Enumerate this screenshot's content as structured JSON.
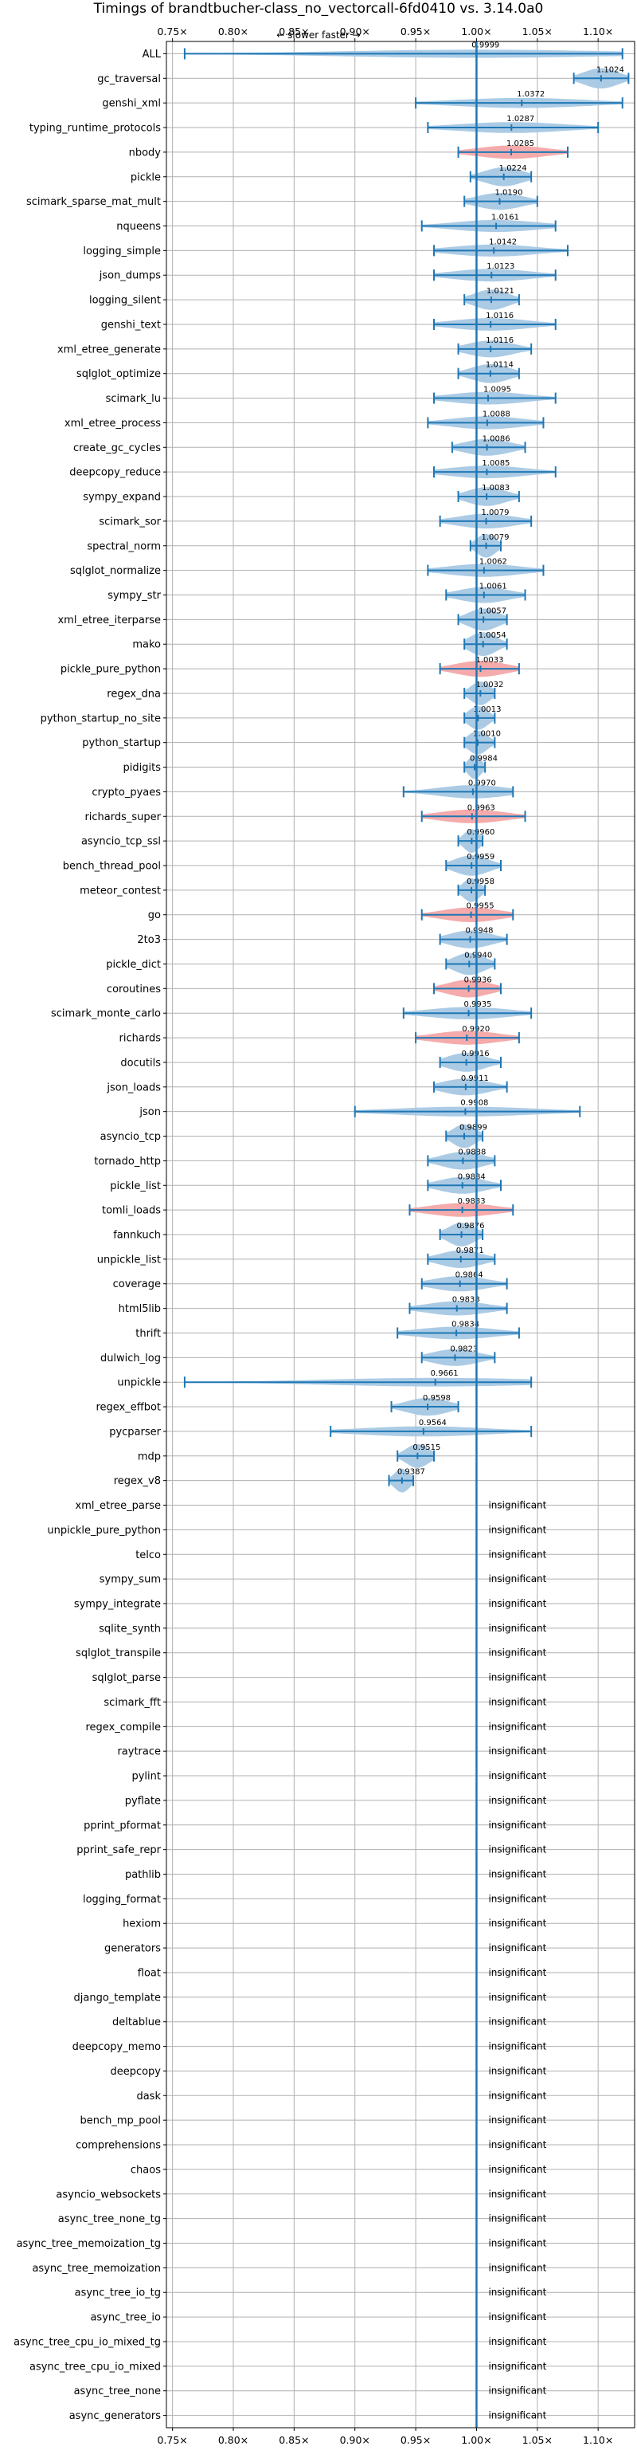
{
  "title": "Timings of brandtbucher-class_no_vectorcall-6fd0410 vs. 3.14.0a0",
  "subtitle": "← slower     faster →",
  "chart_data": {
    "type": "violin",
    "xlim": [
      0.745,
      1.13
    ],
    "xticks": [
      0.75,
      0.8,
      0.85,
      0.9,
      0.95,
      1.0,
      1.05,
      1.1
    ],
    "xtick_labels": [
      "0.75×",
      "0.80×",
      "0.85×",
      "0.90×",
      "0.95×",
      "1.00×",
      "1.05×",
      "1.10×"
    ],
    "grid": true,
    "colors": {
      "faster": "#a6c8e4",
      "slower": "#f4a6a6",
      "line": "#1f77b4",
      "grid": "#b0b0b0"
    },
    "insignificant_label": "insignificant",
    "benchmarks": [
      {
        "name": "ALL",
        "value": 0.9999,
        "min": 0.76,
        "max": 1.12,
        "slower": false
      },
      {
        "name": "gc_traversal",
        "value": 1.1024,
        "min": 1.08,
        "max": 1.125,
        "slower": false
      },
      {
        "name": "genshi_xml",
        "value": 1.0372,
        "min": 0.95,
        "max": 1.12,
        "slower": false
      },
      {
        "name": "typing_runtime_protocols",
        "value": 1.0287,
        "min": 0.96,
        "max": 1.1,
        "slower": false
      },
      {
        "name": "nbody",
        "value": 1.0285,
        "min": 0.985,
        "max": 1.075,
        "slower": true
      },
      {
        "name": "pickle",
        "value": 1.0224,
        "min": 0.995,
        "max": 1.045,
        "slower": false
      },
      {
        "name": "scimark_sparse_mat_mult",
        "value": 1.019,
        "min": 0.99,
        "max": 1.05,
        "slower": false
      },
      {
        "name": "nqueens",
        "value": 1.0161,
        "min": 0.955,
        "max": 1.065,
        "slower": false
      },
      {
        "name": "logging_simple",
        "value": 1.0142,
        "min": 0.965,
        "max": 1.075,
        "slower": false
      },
      {
        "name": "json_dumps",
        "value": 1.0123,
        "min": 0.965,
        "max": 1.065,
        "slower": false
      },
      {
        "name": "logging_silent",
        "value": 1.0121,
        "min": 0.99,
        "max": 1.035,
        "slower": false
      },
      {
        "name": "genshi_text",
        "value": 1.0116,
        "min": 0.965,
        "max": 1.065,
        "slower": false
      },
      {
        "name": "xml_etree_generate",
        "value": 1.0116,
        "min": 0.985,
        "max": 1.045,
        "slower": false
      },
      {
        "name": "sqlglot_optimize",
        "value": 1.0114,
        "min": 0.985,
        "max": 1.035,
        "slower": false
      },
      {
        "name": "scimark_lu",
        "value": 1.0095,
        "min": 0.965,
        "max": 1.065,
        "slower": false
      },
      {
        "name": "xml_etree_process",
        "value": 1.0088,
        "min": 0.96,
        "max": 1.055,
        "slower": false
      },
      {
        "name": "create_gc_cycles",
        "value": 1.0086,
        "min": 0.98,
        "max": 1.04,
        "slower": false
      },
      {
        "name": "deepcopy_reduce",
        "value": 1.0085,
        "min": 0.965,
        "max": 1.065,
        "slower": false
      },
      {
        "name": "sympy_expand",
        "value": 1.0083,
        "min": 0.985,
        "max": 1.035,
        "slower": false
      },
      {
        "name": "scimark_sor",
        "value": 1.0079,
        "min": 0.97,
        "max": 1.045,
        "slower": false
      },
      {
        "name": "spectral_norm",
        "value": 1.0079,
        "min": 0.995,
        "max": 1.02,
        "slower": false
      },
      {
        "name": "sqlglot_normalize",
        "value": 1.0062,
        "min": 0.96,
        "max": 1.055,
        "slower": false
      },
      {
        "name": "sympy_str",
        "value": 1.0061,
        "min": 0.975,
        "max": 1.04,
        "slower": false
      },
      {
        "name": "xml_etree_iterparse",
        "value": 1.0057,
        "min": 0.985,
        "max": 1.025,
        "slower": false
      },
      {
        "name": "mako",
        "value": 1.0054,
        "min": 0.99,
        "max": 1.025,
        "slower": false
      },
      {
        "name": "pickle_pure_python",
        "value": 1.0033,
        "min": 0.97,
        "max": 1.035,
        "slower": true
      },
      {
        "name": "regex_dna",
        "value": 1.0032,
        "min": 0.99,
        "max": 1.015,
        "slower": false
      },
      {
        "name": "python_startup_no_site",
        "value": 1.0013,
        "min": 0.99,
        "max": 1.015,
        "slower": false
      },
      {
        "name": "python_startup",
        "value": 1.001,
        "min": 0.99,
        "max": 1.015,
        "slower": false
      },
      {
        "name": "pidigits",
        "value": 0.9984,
        "min": 0.99,
        "max": 1.007,
        "slower": false
      },
      {
        "name": "crypto_pyaes",
        "value": 0.997,
        "min": 0.94,
        "max": 1.03,
        "slower": false
      },
      {
        "name": "richards_super",
        "value": 0.9963,
        "min": 0.955,
        "max": 1.04,
        "slower": true
      },
      {
        "name": "asyncio_tcp_ssl",
        "value": 0.996,
        "min": 0.985,
        "max": 1.005,
        "slower": false
      },
      {
        "name": "bench_thread_pool",
        "value": 0.9959,
        "min": 0.975,
        "max": 1.02,
        "slower": false
      },
      {
        "name": "meteor_contest",
        "value": 0.9958,
        "min": 0.985,
        "max": 1.007,
        "slower": false
      },
      {
        "name": "go",
        "value": 0.9955,
        "min": 0.955,
        "max": 1.03,
        "slower": true
      },
      {
        "name": "2to3",
        "value": 0.9948,
        "min": 0.97,
        "max": 1.025,
        "slower": false
      },
      {
        "name": "pickle_dict",
        "value": 0.994,
        "min": 0.975,
        "max": 1.015,
        "slower": false
      },
      {
        "name": "coroutines",
        "value": 0.9936,
        "min": 0.965,
        "max": 1.02,
        "slower": true
      },
      {
        "name": "scimark_monte_carlo",
        "value": 0.9935,
        "min": 0.94,
        "max": 1.045,
        "slower": false
      },
      {
        "name": "richards",
        "value": 0.992,
        "min": 0.95,
        "max": 1.035,
        "slower": true
      },
      {
        "name": "docutils",
        "value": 0.9916,
        "min": 0.97,
        "max": 1.02,
        "slower": false
      },
      {
        "name": "json_loads",
        "value": 0.9911,
        "min": 0.965,
        "max": 1.025,
        "slower": false
      },
      {
        "name": "json",
        "value": 0.9908,
        "min": 0.9,
        "max": 1.085,
        "slower": false
      },
      {
        "name": "asyncio_tcp",
        "value": 0.9899,
        "min": 0.975,
        "max": 1.005,
        "slower": false
      },
      {
        "name": "tornado_http",
        "value": 0.9888,
        "min": 0.96,
        "max": 1.015,
        "slower": false
      },
      {
        "name": "pickle_list",
        "value": 0.9884,
        "min": 0.96,
        "max": 1.02,
        "slower": false
      },
      {
        "name": "tomli_loads",
        "value": 0.9883,
        "min": 0.945,
        "max": 1.03,
        "slower": true
      },
      {
        "name": "fannkuch",
        "value": 0.9876,
        "min": 0.97,
        "max": 1.005,
        "slower": false
      },
      {
        "name": "unpickle_list",
        "value": 0.9871,
        "min": 0.96,
        "max": 1.015,
        "slower": false
      },
      {
        "name": "coverage",
        "value": 0.9864,
        "min": 0.955,
        "max": 1.025,
        "slower": false
      },
      {
        "name": "html5lib",
        "value": 0.9838,
        "min": 0.945,
        "max": 1.025,
        "slower": false
      },
      {
        "name": "thrift",
        "value": 0.9834,
        "min": 0.935,
        "max": 1.035,
        "slower": false
      },
      {
        "name": "dulwich_log",
        "value": 0.9823,
        "min": 0.955,
        "max": 1.015,
        "slower": false
      },
      {
        "name": "unpickle",
        "value": 0.9661,
        "min": 0.76,
        "max": 1.045,
        "slower": false
      },
      {
        "name": "regex_effbot",
        "value": 0.9598,
        "min": 0.93,
        "max": 0.985,
        "slower": false
      },
      {
        "name": "pycparser",
        "value": 0.9564,
        "min": 0.88,
        "max": 1.045,
        "slower": false
      },
      {
        "name": "mdp",
        "value": 0.9515,
        "min": 0.935,
        "max": 0.965,
        "slower": false
      },
      {
        "name": "regex_v8",
        "value": 0.9387,
        "min": 0.928,
        "max": 0.948,
        "slower": false
      },
      {
        "name": "xml_etree_parse",
        "value": null
      },
      {
        "name": "unpickle_pure_python",
        "value": null
      },
      {
        "name": "telco",
        "value": null
      },
      {
        "name": "sympy_sum",
        "value": null
      },
      {
        "name": "sympy_integrate",
        "value": null
      },
      {
        "name": "sqlite_synth",
        "value": null
      },
      {
        "name": "sqlglot_transpile",
        "value": null
      },
      {
        "name": "sqlglot_parse",
        "value": null
      },
      {
        "name": "scimark_fft",
        "value": null
      },
      {
        "name": "regex_compile",
        "value": null
      },
      {
        "name": "raytrace",
        "value": null
      },
      {
        "name": "pylint",
        "value": null
      },
      {
        "name": "pyflate",
        "value": null
      },
      {
        "name": "pprint_pformat",
        "value": null
      },
      {
        "name": "pprint_safe_repr",
        "value": null
      },
      {
        "name": "pathlib",
        "value": null
      },
      {
        "name": "logging_format",
        "value": null
      },
      {
        "name": "hexiom",
        "value": null
      },
      {
        "name": "generators",
        "value": null
      },
      {
        "name": "float",
        "value": null
      },
      {
        "name": "django_template",
        "value": null
      },
      {
        "name": "deltablue",
        "value": null
      },
      {
        "name": "deepcopy_memo",
        "value": null
      },
      {
        "name": "deepcopy",
        "value": null
      },
      {
        "name": "dask",
        "value": null
      },
      {
        "name": "bench_mp_pool",
        "value": null
      },
      {
        "name": "comprehensions",
        "value": null
      },
      {
        "name": "chaos",
        "value": null
      },
      {
        "name": "asyncio_websockets",
        "value": null
      },
      {
        "name": "async_tree_none_tg",
        "value": null
      },
      {
        "name": "async_tree_memoization_tg",
        "value": null
      },
      {
        "name": "async_tree_memoization",
        "value": null
      },
      {
        "name": "async_tree_io_tg",
        "value": null
      },
      {
        "name": "async_tree_io",
        "value": null
      },
      {
        "name": "async_tree_cpu_io_mixed_tg",
        "value": null
      },
      {
        "name": "async_tree_cpu_io_mixed",
        "value": null
      },
      {
        "name": "async_tree_none",
        "value": null
      },
      {
        "name": "async_generators",
        "value": null
      }
    ]
  }
}
